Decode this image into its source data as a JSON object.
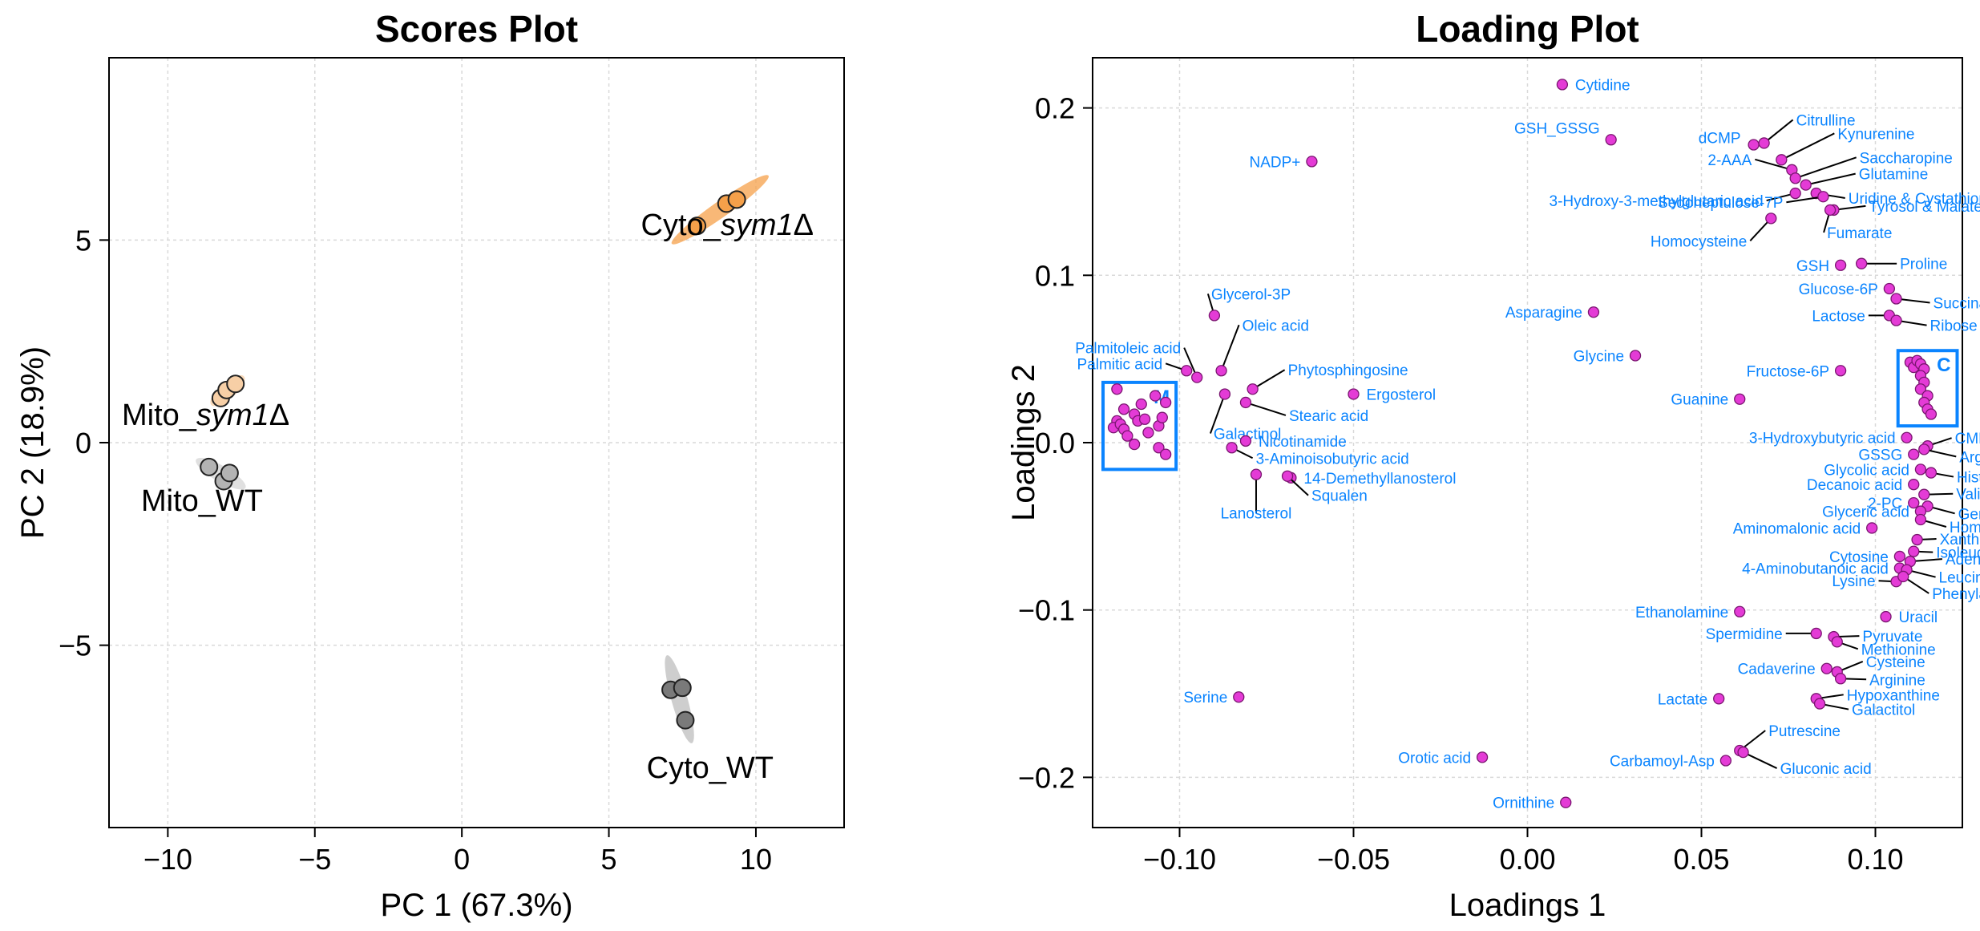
{
  "chart_data": [
    {
      "type": "scatter",
      "title": "Scores Plot",
      "xlabel": "PC 1 (67.3%)",
      "ylabel": "PC 2 (18.9%)",
      "xlim": [
        -12,
        13
      ],
      "ylim": [
        -9.5,
        9.5
      ],
      "xticks": [
        -10,
        -5,
        0,
        5,
        10
      ],
      "yticks": [
        -5,
        0,
        5
      ],
      "grid": true,
      "series": [
        {
          "name": "Cyto_sym1Δ",
          "group": "cyto_sym1",
          "label_prefix": "Cyto_",
          "label_italic": "sym1",
          "label_suffix": "Δ",
          "color": "#f5a04a",
          "ellipse_color": "#f5a04a",
          "points": [
            [
              8.0,
              5.35
            ],
            [
              9.0,
              5.9
            ],
            [
              9.35,
              6.0
            ]
          ]
        },
        {
          "name": "Mito_sym1Δ",
          "group": "mito_sym1",
          "label_prefix": "Mito_",
          "label_italic": "sym1",
          "label_suffix": "Δ",
          "color": "#f7cfa6",
          "ellipse_color": "#f7cfa6",
          "points": [
            [
              -8.2,
              1.1
            ],
            [
              -8.0,
              1.3
            ],
            [
              -7.7,
              1.45
            ]
          ]
        },
        {
          "name": "Mito_WT",
          "group": "mito_wt",
          "label_prefix": "Mito_WT",
          "label_italic": "",
          "label_suffix": "",
          "color": "#b3b3b3",
          "ellipse_color": "#d6d6d6",
          "points": [
            [
              -8.6,
              -0.6
            ],
            [
              -8.1,
              -0.95
            ],
            [
              -7.9,
              -0.75
            ]
          ]
        },
        {
          "name": "Cyto_WT",
          "group": "cyto_wt",
          "label_prefix": "Cyto_WT",
          "label_italic": "",
          "label_suffix": "",
          "color": "#7a7a7a",
          "ellipse_color": "#bdbdbd",
          "points": [
            [
              7.1,
              -6.1
            ],
            [
              7.5,
              -6.05
            ],
            [
              7.6,
              -6.85
            ]
          ]
        }
      ]
    },
    {
      "type": "scatter",
      "title": "Loading Plot",
      "xlabel": "Loadings 1",
      "ylabel": "Loadings 2",
      "xlim": [
        -0.125,
        0.125
      ],
      "ylim": [
        -0.23,
        0.23
      ],
      "xticks": [
        -0.1,
        -0.05,
        0.0,
        0.05,
        0.1
      ],
      "yticks": [
        -0.2,
        -0.1,
        0.0,
        0.1,
        0.2
      ],
      "tick_labels_x": [
        "−0.10",
        "−0.05",
        "0.00",
        "0.05",
        "0.10"
      ],
      "tick_labels_y": [
        "−0.2",
        "−0.1",
        "0.0",
        "0.1",
        "0.2"
      ],
      "grid": true,
      "point_color": "#e43bd6",
      "label_color": "#0a84ff",
      "boxes": [
        {
          "label": "M",
          "x0": -0.122,
          "x1": -0.101,
          "y0": -0.016,
          "y1": 0.036
        },
        {
          "label": "C",
          "x0": 0.1065,
          "x1": 0.1235,
          "y0": 0.01,
          "y1": 0.055
        }
      ],
      "labeled_points": [
        {
          "name": "Cytidine",
          "x": 0.01,
          "y": 0.214
        },
        {
          "name": "GSH_GSSG",
          "x": 0.024,
          "y": 0.181
        },
        {
          "name": "NADP+",
          "x": -0.062,
          "y": 0.168
        },
        {
          "name": "dCMP",
          "x": 0.065,
          "y": 0.178
        },
        {
          "name": "Citrulline",
          "x": 0.068,
          "y": 0.179
        },
        {
          "name": "Kynurenine",
          "x": 0.073,
          "y": 0.169
        },
        {
          "name": "2-AAA",
          "x": 0.076,
          "y": 0.163
        },
        {
          "name": "Saccharopine",
          "x": 0.077,
          "y": 0.158
        },
        {
          "name": "Glutamine",
          "x": 0.08,
          "y": 0.154
        },
        {
          "name": "3-Hydroxy-3-methylglutaric acid",
          "x": 0.077,
          "y": 0.149
        },
        {
          "name": "Uridine & Cystathionine",
          "x": 0.083,
          "y": 0.149
        },
        {
          "name": "Sedoheptulose-7P",
          "x": 0.085,
          "y": 0.147
        },
        {
          "name": "Tyrosol & Malate",
          "x": 0.088,
          "y": 0.139
        },
        {
          "name": "Homocysteine",
          "x": 0.07,
          "y": 0.134
        },
        {
          "name": "Fumarate",
          "x": 0.087,
          "y": 0.139
        },
        {
          "name": "GSH",
          "x": 0.09,
          "y": 0.106
        },
        {
          "name": "Proline",
          "x": 0.096,
          "y": 0.107
        },
        {
          "name": "Glucose-6P",
          "x": 0.104,
          "y": 0.092
        },
        {
          "name": "Succinate",
          "x": 0.106,
          "y": 0.086
        },
        {
          "name": "Lactose",
          "x": 0.104,
          "y": 0.076
        },
        {
          "name": "Ribose",
          "x": 0.106,
          "y": 0.073
        },
        {
          "name": "Asparagine",
          "x": 0.019,
          "y": 0.078
        },
        {
          "name": "Glycine",
          "x": 0.031,
          "y": 0.052
        },
        {
          "name": "Fructose-6P",
          "x": 0.09,
          "y": 0.043
        },
        {
          "name": "Guanine",
          "x": 0.061,
          "y": 0.026
        },
        {
          "name": "Glycerol-3P",
          "x": -0.09,
          "y": 0.076
        },
        {
          "name": "Palmitoleic acid",
          "x": -0.095,
          "y": 0.039
        },
        {
          "name": "Palmitic acid",
          "x": -0.098,
          "y": 0.043
        },
        {
          "name": "Oleic acid",
          "x": -0.088,
          "y": 0.043
        },
        {
          "name": "Phytosphingosine",
          "x": -0.079,
          "y": 0.032
        },
        {
          "name": "Ergosterol",
          "x": -0.05,
          "y": 0.029
        },
        {
          "name": "Stearic acid",
          "x": -0.081,
          "y": 0.024
        },
        {
          "name": "Galactinol",
          "x": -0.087,
          "y": 0.029
        },
        {
          "name": "Nicotinamide",
          "x": -0.081,
          "y": 0.001
        },
        {
          "name": "3-Aminoisobutyric acid",
          "x": -0.085,
          "y": -0.003
        },
        {
          "name": "14-Demethyllanosterol",
          "x": -0.068,
          "y": -0.021
        },
        {
          "name": "Squalen",
          "x": -0.069,
          "y": -0.02
        },
        {
          "name": "Lanosterol",
          "x": -0.078,
          "y": -0.019
        },
        {
          "name": "3-Hydroxybutyric acid",
          "x": 0.109,
          "y": 0.003
        },
        {
          "name": "CMP",
          "x": 0.115,
          "y": -0.002
        },
        {
          "name": "GSSG",
          "x": 0.111,
          "y": -0.007
        },
        {
          "name": "Argininosuccinate",
          "x": 0.114,
          "y": -0.004
        },
        {
          "name": "Glycolic acid",
          "x": 0.113,
          "y": -0.016
        },
        {
          "name": "Histidine",
          "x": 0.116,
          "y": -0.018
        },
        {
          "name": "Decanoic acid",
          "x": 0.111,
          "y": -0.025
        },
        {
          "name": "Valine",
          "x": 0.114,
          "y": -0.031
        },
        {
          "name": "2-PC",
          "x": 0.111,
          "y": -0.036
        },
        {
          "name": "Gentiobiose",
          "x": 0.115,
          "y": -0.038
        },
        {
          "name": "Glyceric acid",
          "x": 0.113,
          "y": -0.041
        },
        {
          "name": "Homoserine",
          "x": 0.113,
          "y": -0.046
        },
        {
          "name": "Aminomalonic acid",
          "x": 0.099,
          "y": -0.051
        },
        {
          "name": "Xanthine",
          "x": 0.112,
          "y": -0.058
        },
        {
          "name": "Isoleucine",
          "x": 0.111,
          "y": -0.065
        },
        {
          "name": "Cytosine",
          "x": 0.107,
          "y": -0.068
        },
        {
          "name": "Adenosine",
          "x": 0.11,
          "y": -0.071
        },
        {
          "name": "4-Aminobutanoic acid",
          "x": 0.107,
          "y": -0.075
        },
        {
          "name": "Leucine",
          "x": 0.109,
          "y": -0.076
        },
        {
          "name": "Lysine",
          "x": 0.106,
          "y": -0.083
        },
        {
          "name": "Phenylalanine",
          "x": 0.108,
          "y": -0.08
        },
        {
          "name": "Ethanolamine",
          "x": 0.061,
          "y": -0.101
        },
        {
          "name": "Uracil",
          "x": 0.103,
          "y": -0.104
        },
        {
          "name": "Spermidine",
          "x": 0.083,
          "y": -0.114
        },
        {
          "name": "Pyruvate",
          "x": 0.088,
          "y": -0.116
        },
        {
          "name": "Methionine",
          "x": 0.089,
          "y": -0.119
        },
        {
          "name": "Cadaverine",
          "x": 0.086,
          "y": -0.135
        },
        {
          "name": "Cysteine",
          "x": 0.089,
          "y": -0.137
        },
        {
          "name": "Arginine",
          "x": 0.09,
          "y": -0.141
        },
        {
          "name": "Lactate",
          "x": 0.055,
          "y": -0.153
        },
        {
          "name": "Hypoxanthine",
          "x": 0.083,
          "y": -0.153
        },
        {
          "name": "Galactitol",
          "x": 0.084,
          "y": -0.156
        },
        {
          "name": "Serine",
          "x": -0.083,
          "y": -0.152
        },
        {
          "name": "Putrescine",
          "x": 0.061,
          "y": -0.184
        },
        {
          "name": "Orotic acid",
          "x": -0.013,
          "y": -0.188
        },
        {
          "name": "Carbamoyl-Asp",
          "x": 0.057,
          "y": -0.19
        },
        {
          "name": "Gluconic acid",
          "x": 0.062,
          "y": -0.185
        },
        {
          "name": "Ornithine",
          "x": 0.011,
          "y": -0.215
        }
      ],
      "box_points": [
        [
          -0.118,
          0.032
        ],
        [
          -0.116,
          0.02
        ],
        [
          -0.118,
          0.013
        ],
        [
          -0.119,
          0.009
        ],
        [
          -0.117,
          0.011
        ],
        [
          -0.116,
          0.008
        ],
        [
          -0.115,
          0.004
        ],
        [
          -0.113,
          0.017
        ],
        [
          -0.112,
          0.013
        ],
        [
          -0.111,
          0.023
        ],
        [
          -0.11,
          0.014
        ],
        [
          -0.109,
          0.006
        ],
        [
          -0.107,
          0.028
        ],
        [
          -0.106,
          0.01
        ],
        [
          -0.105,
          0.015
        ],
        [
          -0.104,
          0.024
        ],
        [
          -0.106,
          -0.003
        ],
        [
          -0.104,
          -0.007
        ],
        [
          -0.113,
          -0.001
        ],
        [
          0.11,
          0.048
        ],
        [
          0.111,
          0.045
        ],
        [
          0.112,
          0.049
        ],
        [
          0.113,
          0.047
        ],
        [
          0.114,
          0.044
        ],
        [
          0.113,
          0.04
        ],
        [
          0.114,
          0.036
        ],
        [
          0.113,
          0.032
        ],
        [
          0.115,
          0.028
        ],
        [
          0.114,
          0.024
        ],
        [
          0.115,
          0.02
        ],
        [
          0.116,
          0.017
        ]
      ]
    }
  ]
}
